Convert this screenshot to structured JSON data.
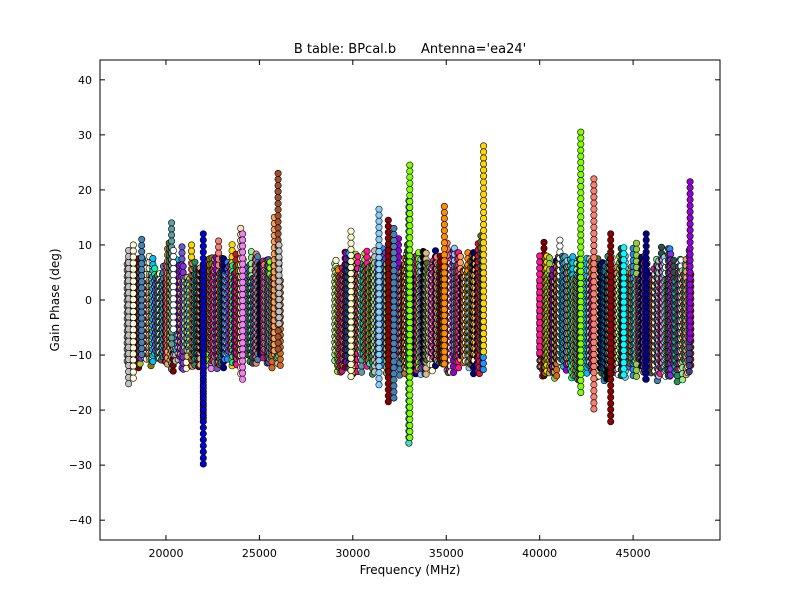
{
  "chart_data": {
    "type": "scatter",
    "title": "B table: BPcal.b      Antenna='ea24'",
    "xlabel": "Frequency (MHz)",
    "ylabel": "Gain Phase (deg)",
    "xlim": [
      16470,
      49650
    ],
    "ylim": [
      -43.6,
      43.6
    ],
    "xticks": [
      20000,
      25000,
      30000,
      35000,
      40000,
      45000
    ],
    "yticks": [
      -40,
      -30,
      -20,
      -10,
      0,
      10,
      20,
      30,
      40
    ],
    "ytick_labels": [
      "−40",
      "−30",
      "−20",
      "−10",
      "0",
      "10",
      "20",
      "30",
      "40"
    ],
    "grid": false,
    "legend": "none",
    "bands": [
      {
        "freq_start": 17900,
        "freq_end": 26100,
        "phase_range": [
          -9,
          8
        ]
      },
      {
        "freq_start": 29000,
        "freq_end": 37000,
        "phase_range": [
          -10,
          9
        ]
      },
      {
        "freq_start": 40000,
        "freq_end": 48100,
        "phase_range": [
          -11,
          8
        ]
      }
    ],
    "palette": [
      "#1e90ff",
      "#00ced1",
      "#008080",
      "#2e8b57",
      "#556b2f",
      "#8b4513",
      "#d2691e",
      "#ff8c00",
      "#ffd700",
      "#9acd32",
      "#7fff00",
      "#00fa9a",
      "#4682b4",
      "#87cefa",
      "#6a5acd",
      "#8a2be2",
      "#9400d3",
      "#ff1493",
      "#c71585",
      "#dc143c",
      "#b22222",
      "#800000",
      "#f4a460",
      "#deb887",
      "#fffacd",
      "#c0c0c0",
      "#ffffff",
      "#2f4f4f",
      "#000000",
      "#808000",
      "#ee82ee",
      "#fa8072",
      "#5f9ea0",
      "#000080",
      "#00bfff",
      "#90ee90",
      "#bc8f8f"
    ],
    "highlight_columns": [
      {
        "freq": 18000,
        "min": -16,
        "max": 9,
        "color": "#c0c0c0"
      },
      {
        "freq": 18250,
        "min": -15,
        "max": 10,
        "color": "#fff8dc"
      },
      {
        "freq": 18700,
        "min": -10,
        "max": 11,
        "color": "#4682b4"
      },
      {
        "freq": 20300,
        "min": -9,
        "max": 14,
        "color": "#5f9ea0"
      },
      {
        "freq": 20400,
        "min": -6,
        "max": 9,
        "color": "#ffffff"
      },
      {
        "freq": 22000,
        "min": -22,
        "max": 6,
        "color": "#b22222"
      },
      {
        "freq": 22000,
        "min": -30,
        "max": 12,
        "color": "#0000cd"
      },
      {
        "freq": 24000,
        "min": -14,
        "max": 13,
        "color": "#ffe4b5"
      },
      {
        "freq": 24100,
        "min": -15,
        "max": 12,
        "color": "#ee82ee"
      },
      {
        "freq": 25800,
        "min": -10,
        "max": 15,
        "color": "#f4a460"
      },
      {
        "freq": 26000,
        "min": -10,
        "max": 23,
        "color": "#a0522d"
      },
      {
        "freq": 26050,
        "min": -5,
        "max": 10,
        "color": "#c0c0c0"
      },
      {
        "freq": 29900,
        "min": -14,
        "max": 12.5,
        "color": "#fffacd"
      },
      {
        "freq": 31400,
        "min": -16,
        "max": 16.5,
        "color": "#87cefa"
      },
      {
        "freq": 31900,
        "min": -19,
        "max": 14.5,
        "color": "#8b0000"
      },
      {
        "freq": 32200,
        "min": -18,
        "max": 13,
        "color": "#4682b4"
      },
      {
        "freq": 33000,
        "min": -26.5,
        "max": 18,
        "color": "#40e0d0"
      },
      {
        "freq": 33050,
        "min": -26,
        "max": 24.5,
        "color": "#7fff00"
      },
      {
        "freq": 34900,
        "min": -12,
        "max": 17,
        "color": "#ff8c00"
      },
      {
        "freq": 37000,
        "min": -10.5,
        "max": 28,
        "color": "#ffd700"
      },
      {
        "freq": 40000,
        "min": -10,
        "max": 8,
        "color": "#ff1493"
      },
      {
        "freq": 42200,
        "min": -17,
        "max": 30.5,
        "color": "#7fff00"
      },
      {
        "freq": 42900,
        "min": -20,
        "max": 22,
        "color": "#fa8072"
      },
      {
        "freq": 43800,
        "min": -23,
        "max": 12,
        "color": "#8b0000"
      },
      {
        "freq": 44500,
        "min": -14,
        "max": 9.5,
        "color": "#00ffff"
      },
      {
        "freq": 45700,
        "min": -15,
        "max": 12,
        "color": "#00008b"
      },
      {
        "freq": 48000,
        "min": -13,
        "max": 9,
        "color": "#483d8b"
      },
      {
        "freq": 48050,
        "min": -8,
        "max": 21.5,
        "color": "#9400d3"
      }
    ]
  }
}
